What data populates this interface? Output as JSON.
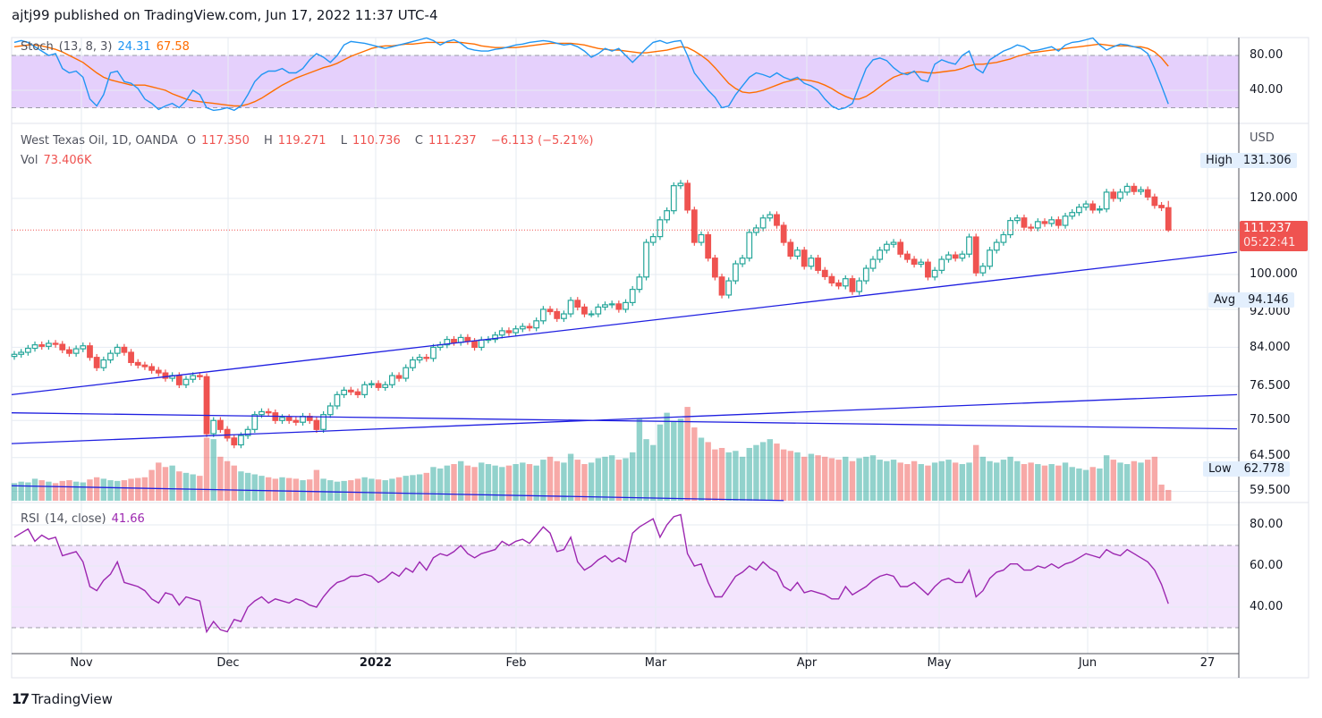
{
  "header": {
    "published": "ajtj99 published on TradingView.com, Jun 17, 2022 11:37 UTC-4"
  },
  "stoch": {
    "label": "Stoch",
    "params": "(13, 8, 3)",
    "k_value": "24.31",
    "d_value": "67.58",
    "ticks": [
      "80.00",
      "40.00"
    ],
    "k_color": "#2196f3",
    "d_color": "#ff6d00",
    "band_color": "#e1c8fb"
  },
  "main": {
    "symbol": "West Texas Oil, 1D, OANDA",
    "o_label": "O",
    "o": "117.350",
    "h_label": "H",
    "h": "119.271",
    "l_label": "L",
    "l": "110.736",
    "c_label": "C",
    "c": "111.237",
    "change": "−6.113 (−5.21%)",
    "vol_label": "Vol",
    "vol": "73.406K",
    "currency": "USD",
    "ticks": [
      "120.000",
      "100.000",
      "92.000",
      "84.000",
      "76.500",
      "70.500",
      "64.500",
      "59.500"
    ],
    "high_label": "High",
    "high_value": "131.306",
    "avg_label": "Avg",
    "avg_value": "94.146",
    "low_label": "Low",
    "low_value": "62.778",
    "current_price": "111.237",
    "countdown": "05:22:41",
    "up_color": "#26a69a",
    "down_color": "#ef5350"
  },
  "rsi": {
    "label": "RSI",
    "params": "(14, close)",
    "value": "41.66",
    "ticks": [
      "80.00",
      "60.00",
      "40.00"
    ],
    "color": "#9c27b0"
  },
  "time_axis": {
    "labels": [
      "Nov",
      "Dec",
      "2022",
      "Feb",
      "Mar",
      "Apr",
      "May",
      "Jun",
      "27"
    ]
  },
  "footer": {
    "brand": "TradingView"
  },
  "chart_data": {
    "type": "candlestick",
    "price_scale": "log",
    "closes": [
      82.6,
      83.0,
      83.8,
      84.5,
      84.2,
      84.8,
      84.6,
      83.5,
      82.8,
      83.7,
      84.3,
      82.0,
      80.0,
      81.5,
      82.8,
      84.0,
      83.0,
      81.0,
      80.5,
      80.2,
      79.5,
      79.0,
      78.0,
      78.5,
      76.8,
      77.8,
      78.5,
      78.3,
      68.3,
      70.5,
      69.0,
      67.6,
      66.5,
      68.0,
      69.0,
      71.5,
      72.0,
      71.8,
      70.5,
      71.0,
      70.5,
      70.2,
      71.2,
      70.5,
      69.0,
      71.5,
      73.0,
      75.0,
      75.8,
      75.5,
      75.0,
      76.8,
      77.0,
      76.3,
      76.8,
      78.5,
      78.0,
      80.0,
      81.5,
      82.0,
      81.8,
      84.0,
      84.5,
      85.6,
      85.0,
      86.0,
      85.2,
      84.0,
      85.5,
      85.6,
      86.5,
      87.4,
      87.0,
      87.8,
      88.3,
      88.0,
      89.5,
      92.0,
      91.5,
      90.0,
      91.0,
      94.0,
      92.5,
      91.0,
      91.0,
      92.5,
      93.0,
      93.2,
      92.0,
      93.5,
      96.5,
      99.4,
      108.0,
      109.5,
      114.0,
      116.5,
      123.7,
      124.4,
      116.7,
      108.0,
      110.0,
      104.0,
      99.4,
      95.2,
      98.5,
      102.6,
      104.0,
      110.6,
      111.8,
      114.5,
      115.4,
      112.5,
      108.0,
      104.5,
      106.0,
      102.0,
      104.0,
      101.0,
      99.5,
      98.0,
      97.3,
      99.0,
      96.0,
      98.5,
      101.5,
      103.7,
      106.0,
      107.5,
      108.0,
      105.0,
      103.7,
      102.5,
      103.0,
      99.4,
      101.0,
      103.7,
      104.8,
      104.0,
      105.0,
      109.4,
      100.4,
      102.0,
      106.0,
      108.0,
      110.0,
      113.8,
      114.5,
      112.0,
      111.8,
      113.5,
      113.0,
      114.0,
      112.5,
      115.0,
      116.0,
      117.5,
      118.4,
      116.7,
      117.0,
      121.8,
      120.0,
      121.8,
      123.5,
      122.0,
      122.5,
      120.4,
      118.0,
      117.35,
      111.237
    ],
    "last_candle": {
      "open": 117.35,
      "high": 119.271,
      "low": 110.736,
      "close": 111.237
    },
    "volume_k": [
      120,
      130,
      125,
      150,
      140,
      130,
      120,
      135,
      140,
      130,
      125,
      145,
      160,
      150,
      140,
      135,
      140,
      150,
      155,
      160,
      210,
      260,
      230,
      240,
      200,
      190,
      180,
      170,
      430,
      420,
      300,
      270,
      240,
      200,
      190,
      180,
      170,
      160,
      150,
      160,
      155,
      150,
      140,
      145,
      210,
      150,
      140,
      130,
      135,
      140,
      150,
      160,
      150,
      145,
      140,
      150,
      160,
      170,
      175,
      180,
      190,
      230,
      220,
      240,
      250,
      270,
      240,
      230,
      260,
      250,
      240,
      230,
      240,
      250,
      260,
      250,
      240,
      280,
      300,
      270,
      260,
      320,
      280,
      250,
      260,
      290,
      300,
      310,
      280,
      290,
      330,
      560,
      420,
      380,
      520,
      600,
      540,
      560,
      640,
      500,
      430,
      400,
      350,
      360,
      330,
      340,
      300,
      360,
      380,
      400,
      420,
      390,
      350,
      340,
      330,
      300,
      320,
      310,
      300,
      290,
      280,
      300,
      270,
      290,
      300,
      310,
      280,
      270,
      280,
      260,
      250,
      270,
      250,
      240,
      260,
      270,
      280,
      260,
      250,
      260,
      380,
      300,
      270,
      260,
      280,
      300,
      270,
      250,
      260,
      250,
      240,
      250,
      240,
      260,
      230,
      220,
      210,
      230,
      220,
      310,
      280,
      260,
      250,
      270,
      260,
      280,
      300,
      110,
      73.406
    ],
    "rsi": [
      74,
      76,
      78,
      72,
      75,
      73,
      74,
      65,
      66,
      67,
      62,
      50,
      48,
      53,
      56,
      62,
      52,
      51,
      50,
      48,
      44,
      42,
      47,
      46,
      41,
      45,
      44,
      43,
      28,
      33,
      29,
      28,
      34,
      33,
      40,
      43,
      45,
      42,
      44,
      43,
      42,
      44,
      43,
      41,
      40,
      45,
      49,
      52,
      53,
      55,
      55,
      56,
      55,
      52,
      54,
      57,
      55,
      59,
      57,
      62,
      58,
      64,
      66,
      65,
      67,
      70,
      66,
      64,
      66,
      67,
      68,
      72,
      70,
      72,
      73,
      71,
      75,
      79,
      76,
      67,
      68,
      74,
      62,
      58,
      60,
      63,
      65,
      62,
      64,
      62,
      76,
      79,
      81,
      83,
      74,
      80,
      84,
      85,
      66,
      60,
      61,
      52,
      45,
      45,
      50,
      55,
      57,
      60,
      58,
      62,
      59,
      57,
      50,
      48,
      52,
      47,
      48,
      47,
      46,
      44,
      44,
      50,
      46,
      48,
      50,
      53,
      55,
      56,
      55,
      50,
      50,
      52,
      49,
      46,
      50,
      53,
      54,
      52,
      52,
      58,
      45,
      48,
      54,
      57,
      58,
      61,
      61,
      58,
      58,
      60,
      59,
      61,
      59,
      61,
      62,
      64,
      66,
      65,
      64,
      68,
      66,
      65,
      68,
      66,
      64,
      62,
      58,
      51,
      41.66
    ],
    "stoch_k": [
      95,
      97,
      95,
      90,
      85,
      80,
      82,
      65,
      60,
      62,
      55,
      30,
      22,
      35,
      60,
      62,
      50,
      48,
      42,
      30,
      25,
      18,
      22,
      25,
      20,
      28,
      40,
      35,
      20,
      17,
      18,
      20,
      17,
      22,
      35,
      50,
      58,
      62,
      62,
      65,
      60,
      60,
      65,
      75,
      82,
      78,
      72,
      80,
      92,
      96,
      95,
      94,
      92,
      90,
      88,
      90,
      92,
      94,
      96,
      98,
      100,
      97,
      92,
      96,
      98,
      94,
      88,
      86,
      85,
      85,
      87,
      88,
      90,
      92,
      93,
      95,
      96,
      97,
      96,
      94,
      92,
      93,
      90,
      85,
      78,
      82,
      88,
      85,
      88,
      80,
      72,
      80,
      88,
      95,
      97,
      94,
      96,
      97,
      80,
      60,
      50,
      40,
      32,
      20,
      22,
      35,
      45,
      55,
      60,
      58,
      55,
      60,
      55,
      52,
      55,
      48,
      45,
      40,
      30,
      22,
      18,
      20,
      25,
      45,
      65,
      75,
      77,
      74,
      66,
      60,
      58,
      62,
      52,
      50,
      70,
      75,
      72,
      70,
      80,
      85,
      65,
      60,
      75,
      80,
      85,
      88,
      92,
      90,
      85,
      86,
      88,
      90,
      85,
      92,
      95,
      96,
      98,
      100,
      92,
      86,
      90,
      93,
      92,
      90,
      88,
      82,
      65,
      45,
      24.31
    ],
    "stoch_d": [
      90,
      91,
      92,
      92,
      91,
      89,
      87,
      84,
      80,
      76,
      72,
      66,
      60,
      55,
      52,
      50,
      48,
      46,
      46,
      46,
      44,
      42,
      40,
      36,
      33,
      30,
      28,
      27,
      26,
      25,
      24,
      23,
      22,
      22,
      24,
      27,
      31,
      36,
      41,
      46,
      50,
      54,
      57,
      60,
      63,
      66,
      68,
      71,
      75,
      79,
      82,
      85,
      88,
      90,
      91,
      91,
      92,
      93,
      93,
      94,
      95,
      95,
      95,
      95,
      95,
      95,
      94,
      93,
      91,
      90,
      89,
      89,
      89,
      89,
      90,
      91,
      92,
      93,
      94,
      94,
      94,
      94,
      93,
      92,
      90,
      88,
      87,
      86,
      86,
      85,
      84,
      83,
      83,
      84,
      85,
      86,
      88,
      90,
      89,
      85,
      80,
      74,
      66,
      57,
      48,
      42,
      38,
      37,
      38,
      40,
      43,
      46,
      49,
      51,
      53,
      52,
      51,
      49,
      46,
      42,
      37,
      33,
      30,
      30,
      33,
      38,
      44,
      50,
      55,
      58,
      60,
      61,
      61,
      60,
      60,
      61,
      62,
      63,
      65,
      68,
      70,
      70,
      71,
      72,
      74,
      76,
      79,
      81,
      83,
      84,
      85,
      86,
      87,
      88,
      89,
      90,
      91,
      92,
      93,
      92,
      91,
      91,
      91,
      90,
      90,
      88,
      84,
      77,
      67.58
    ],
    "trendlines": [
      {
        "from_bar": 0,
        "from_price": 75.0,
        "to_bar": 178,
        "to_price": 105.5
      },
      {
        "from_bar": 0,
        "from_price": 66.7,
        "to_bar": 178,
        "to_price": 75.0
      },
      {
        "from_bar": 0,
        "from_price": 71.8,
        "to_bar": 178,
        "to_price": 69.1
      },
      {
        "from_bar": 0,
        "from_price": 60.3,
        "to_bar": 112,
        "to_price": 58.2
      }
    ]
  }
}
